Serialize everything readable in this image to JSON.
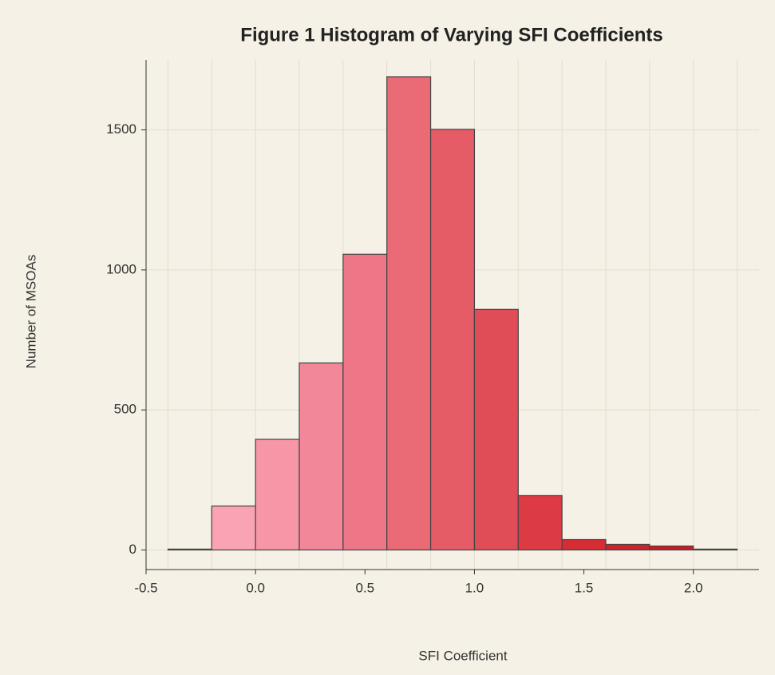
{
  "chart_data": {
    "type": "histogram",
    "title": "Figure 1 Histogram of Varying SFI Coefficients",
    "x_label": "SFI Coefficient",
    "y_label": "Number of MSOAs",
    "bins": [
      -0.4,
      -0.2,
      0.0,
      0.2,
      0.4,
      0.6,
      0.8,
      1.0,
      1.2,
      1.4,
      1.6,
      1.8,
      2.0,
      2.2
    ],
    "values": [
      3,
      157,
      395,
      668,
      1056,
      1690,
      1502,
      859,
      194,
      37,
      20,
      14,
      3
    ],
    "colors": [
      "#fbaabb",
      "#f9a3b5",
      "#f696a6",
      "#f2879a",
      "#ee7787",
      "#ea6a75",
      "#e55c66",
      "#e14d56",
      "#dc3b44",
      "#d62d34",
      "#d0222a",
      "#cb1a22",
      "#c8141e"
    ],
    "xlim": [
      -0.5,
      2.3
    ],
    "ylim": [
      -70,
      1750
    ],
    "xticks": [
      {
        "value": -0.5,
        "label": "-0.5"
      },
      {
        "value": 0.0,
        "label": "0.0"
      },
      {
        "value": 0.5,
        "label": "0.5"
      },
      {
        "value": 1.0,
        "label": "1.0"
      },
      {
        "value": 1.5,
        "label": "1.5"
      },
      {
        "value": 2.0,
        "label": "2.0"
      }
    ],
    "yticks": [
      0,
      500,
      1000,
      1500
    ],
    "grid": true
  }
}
